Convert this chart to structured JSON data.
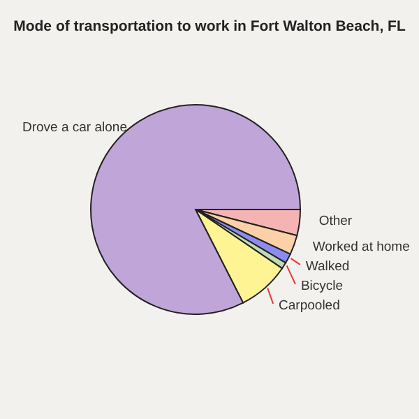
{
  "chart_data": {
    "type": "pie",
    "title": "Mode of transportation to work in Fort Walton Beach, FL",
    "categories": [
      "Other",
      "Worked at home",
      "Walked",
      "Bicycle",
      "Carpooled",
      "Drove a car alone"
    ],
    "values": [
      4,
      3,
      1.5,
      1,
      8,
      82.5
    ],
    "colors": [
      "#f4b4b4",
      "#fdd0a8",
      "#8c8cf0",
      "#c0dcb0",
      "#fff494",
      "#bfa5d8"
    ]
  }
}
